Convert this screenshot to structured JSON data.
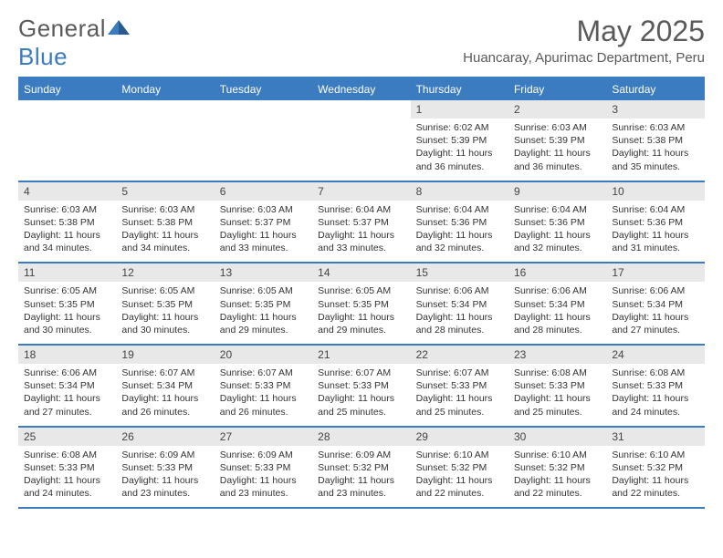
{
  "logo": {
    "text1": "General",
    "text2": "Blue"
  },
  "title": "May 2025",
  "location": "Huancaray, Apurimac Department, Peru",
  "day_headers": [
    "Sunday",
    "Monday",
    "Tuesday",
    "Wednesday",
    "Thursday",
    "Friday",
    "Saturday"
  ],
  "colors": {
    "accent": "#3b7bbf",
    "daynum_bg": "#e8e8e8",
    "text": "#333",
    "header_text": "#5a5a5a"
  },
  "weeks": [
    {
      "days": [
        null,
        null,
        null,
        null,
        {
          "n": "1",
          "sunrise": "6:02 AM",
          "sunset": "5:39 PM",
          "dl": "11 hours and 36 minutes."
        },
        {
          "n": "2",
          "sunrise": "6:03 AM",
          "sunset": "5:39 PM",
          "dl": "11 hours and 36 minutes."
        },
        {
          "n": "3",
          "sunrise": "6:03 AM",
          "sunset": "5:38 PM",
          "dl": "11 hours and 35 minutes."
        }
      ]
    },
    {
      "days": [
        {
          "n": "4",
          "sunrise": "6:03 AM",
          "sunset": "5:38 PM",
          "dl": "11 hours and 34 minutes."
        },
        {
          "n": "5",
          "sunrise": "6:03 AM",
          "sunset": "5:38 PM",
          "dl": "11 hours and 34 minutes."
        },
        {
          "n": "6",
          "sunrise": "6:03 AM",
          "sunset": "5:37 PM",
          "dl": "11 hours and 33 minutes."
        },
        {
          "n": "7",
          "sunrise": "6:04 AM",
          "sunset": "5:37 PM",
          "dl": "11 hours and 33 minutes."
        },
        {
          "n": "8",
          "sunrise": "6:04 AM",
          "sunset": "5:36 PM",
          "dl": "11 hours and 32 minutes."
        },
        {
          "n": "9",
          "sunrise": "6:04 AM",
          "sunset": "5:36 PM",
          "dl": "11 hours and 32 minutes."
        },
        {
          "n": "10",
          "sunrise": "6:04 AM",
          "sunset": "5:36 PM",
          "dl": "11 hours and 31 minutes."
        }
      ]
    },
    {
      "days": [
        {
          "n": "11",
          "sunrise": "6:05 AM",
          "sunset": "5:35 PM",
          "dl": "11 hours and 30 minutes."
        },
        {
          "n": "12",
          "sunrise": "6:05 AM",
          "sunset": "5:35 PM",
          "dl": "11 hours and 30 minutes."
        },
        {
          "n": "13",
          "sunrise": "6:05 AM",
          "sunset": "5:35 PM",
          "dl": "11 hours and 29 minutes."
        },
        {
          "n": "14",
          "sunrise": "6:05 AM",
          "sunset": "5:35 PM",
          "dl": "11 hours and 29 minutes."
        },
        {
          "n": "15",
          "sunrise": "6:06 AM",
          "sunset": "5:34 PM",
          "dl": "11 hours and 28 minutes."
        },
        {
          "n": "16",
          "sunrise": "6:06 AM",
          "sunset": "5:34 PM",
          "dl": "11 hours and 28 minutes."
        },
        {
          "n": "17",
          "sunrise": "6:06 AM",
          "sunset": "5:34 PM",
          "dl": "11 hours and 27 minutes."
        }
      ]
    },
    {
      "days": [
        {
          "n": "18",
          "sunrise": "6:06 AM",
          "sunset": "5:34 PM",
          "dl": "11 hours and 27 minutes."
        },
        {
          "n": "19",
          "sunrise": "6:07 AM",
          "sunset": "5:34 PM",
          "dl": "11 hours and 26 minutes."
        },
        {
          "n": "20",
          "sunrise": "6:07 AM",
          "sunset": "5:33 PM",
          "dl": "11 hours and 26 minutes."
        },
        {
          "n": "21",
          "sunrise": "6:07 AM",
          "sunset": "5:33 PM",
          "dl": "11 hours and 25 minutes."
        },
        {
          "n": "22",
          "sunrise": "6:07 AM",
          "sunset": "5:33 PM",
          "dl": "11 hours and 25 minutes."
        },
        {
          "n": "23",
          "sunrise": "6:08 AM",
          "sunset": "5:33 PM",
          "dl": "11 hours and 25 minutes."
        },
        {
          "n": "24",
          "sunrise": "6:08 AM",
          "sunset": "5:33 PM",
          "dl": "11 hours and 24 minutes."
        }
      ]
    },
    {
      "days": [
        {
          "n": "25",
          "sunrise": "6:08 AM",
          "sunset": "5:33 PM",
          "dl": "11 hours and 24 minutes."
        },
        {
          "n": "26",
          "sunrise": "6:09 AM",
          "sunset": "5:33 PM",
          "dl": "11 hours and 23 minutes."
        },
        {
          "n": "27",
          "sunrise": "6:09 AM",
          "sunset": "5:33 PM",
          "dl": "11 hours and 23 minutes."
        },
        {
          "n": "28",
          "sunrise": "6:09 AM",
          "sunset": "5:32 PM",
          "dl": "11 hours and 23 minutes."
        },
        {
          "n": "29",
          "sunrise": "6:10 AM",
          "sunset": "5:32 PM",
          "dl": "11 hours and 22 minutes."
        },
        {
          "n": "30",
          "sunrise": "6:10 AM",
          "sunset": "5:32 PM",
          "dl": "11 hours and 22 minutes."
        },
        {
          "n": "31",
          "sunrise": "6:10 AM",
          "sunset": "5:32 PM",
          "dl": "11 hours and 22 minutes."
        }
      ]
    }
  ],
  "labels": {
    "sunrise": "Sunrise: ",
    "sunset": "Sunset: ",
    "daylight": "Daylight: "
  }
}
